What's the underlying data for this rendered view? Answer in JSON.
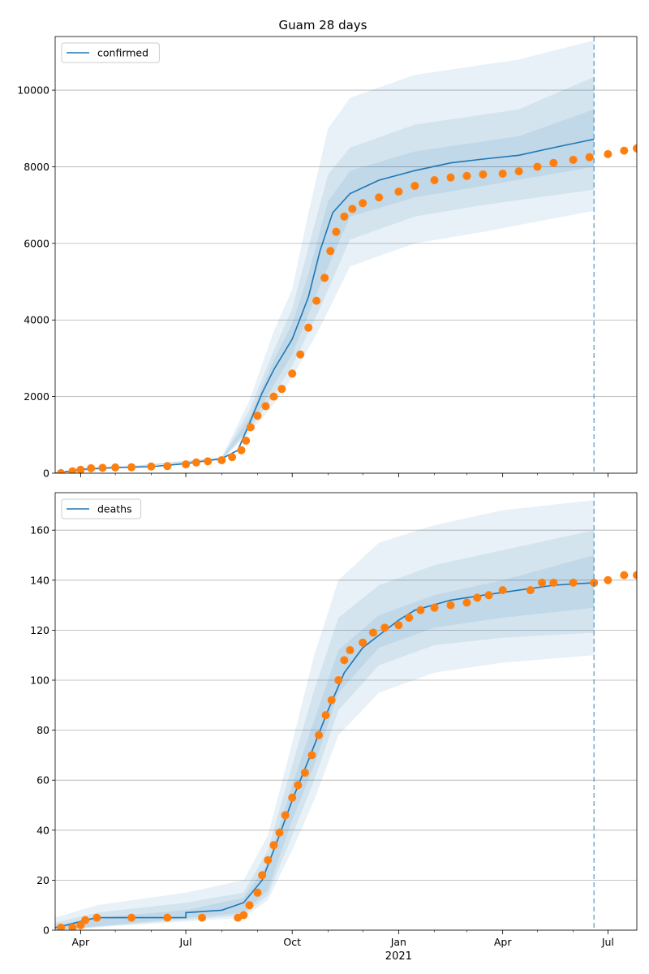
{
  "figure": {
    "title": "Guam 28 days"
  },
  "colors": {
    "line": "#1f77b4",
    "observed": "#ff7f0e",
    "band": "#1f77b4",
    "grid": "#b0b0b0",
    "forecast_line": "#1f77b4"
  },
  "x_axis": {
    "start": "2020-03-10",
    "end": "2021-07-26",
    "ticks": [
      {
        "date": "2020-04-01",
        "label": "Apr"
      },
      {
        "date": "2020-07-01",
        "label": "Jul"
      },
      {
        "date": "2020-10-01",
        "label": "Oct"
      },
      {
        "date": "2021-01-01",
        "label": "Jan"
      },
      {
        "date": "2021-04-01",
        "label": "Apr"
      },
      {
        "date": "2021-07-01",
        "label": "Jul"
      }
    ],
    "year_label": "2021",
    "year_label_date": "2021-01-01",
    "forecast_start": "2021-06-19"
  },
  "chart_data": [
    {
      "type": "line",
      "name": "confirmed",
      "legend": "confirmed",
      "legend_position": "top-left",
      "ylim": [
        0,
        11400
      ],
      "yticks": [
        0,
        2000,
        4000,
        6000,
        8000,
        10000
      ],
      "grid": true,
      "model_median": [
        [
          "2020-03-10",
          0
        ],
        [
          "2020-04-01",
          100
        ],
        [
          "2020-05-01",
          150
        ],
        [
          "2020-06-01",
          170
        ],
        [
          "2020-07-01",
          250
        ],
        [
          "2020-08-01",
          380
        ],
        [
          "2020-08-15",
          600
        ],
        [
          "2020-08-25",
          1300
        ],
        [
          "2020-09-05",
          2100
        ],
        [
          "2020-09-15",
          2700
        ],
        [
          "2020-10-01",
          3500
        ],
        [
          "2020-10-15",
          4600
        ],
        [
          "2020-10-25",
          5800
        ],
        [
          "2020-11-05",
          6800
        ],
        [
          "2020-11-20",
          7300
        ],
        [
          "2020-12-15",
          7650
        ],
        [
          "2021-01-15",
          7900
        ],
        [
          "2021-02-15",
          8100
        ],
        [
          "2021-03-15",
          8200
        ],
        [
          "2021-04-15",
          8300
        ],
        [
          "2021-05-15",
          8500
        ],
        [
          "2021-06-19",
          8720
        ]
      ],
      "bands": [
        {
          "lower": [
            [
              "2020-03-10",
              0
            ],
            [
              "2020-08-01",
              340
            ],
            [
              "2020-08-25",
              1050
            ],
            [
              "2020-09-15",
              1800
            ],
            [
              "2020-10-01",
              2500
            ],
            [
              "2020-10-25",
              3800
            ],
            [
              "2020-11-20",
              5400
            ],
            [
              "2021-01-15",
              6000
            ],
            [
              "2021-03-15",
              6300
            ],
            [
              "2021-06-19",
              6850
            ]
          ],
          "upper": [
            [
              "2020-03-10",
              0
            ],
            [
              "2020-08-01",
              420
            ],
            [
              "2020-08-25",
              1900
            ],
            [
              "2020-09-15",
              3700
            ],
            [
              "2020-10-01",
              4800
            ],
            [
              "2020-10-15",
              6800
            ],
            [
              "2020-11-01",
              9000
            ],
            [
              "2020-11-20",
              9800
            ],
            [
              "2021-01-15",
              10400
            ],
            [
              "2021-04-15",
              10800
            ],
            [
              "2021-06-19",
              11300
            ]
          ]
        },
        {
          "lower": [
            [
              "2020-03-10",
              0
            ],
            [
              "2020-08-01",
              350
            ],
            [
              "2020-08-25",
              1120
            ],
            [
              "2020-09-15",
              2050
            ],
            [
              "2020-10-01",
              2800
            ],
            [
              "2020-10-25",
              4300
            ],
            [
              "2020-11-20",
              6100
            ],
            [
              "2021-01-15",
              6700
            ],
            [
              "2021-03-15",
              7000
            ],
            [
              "2021-06-19",
              7400
            ]
          ],
          "upper": [
            [
              "2020-03-10",
              0
            ],
            [
              "2020-08-01",
              400
            ],
            [
              "2020-08-25",
              1650
            ],
            [
              "2020-09-15",
              3200
            ],
            [
              "2020-10-01",
              4300
            ],
            [
              "2020-10-15",
              5900
            ],
            [
              "2020-11-01",
              7800
            ],
            [
              "2020-11-20",
              8500
            ],
            [
              "2021-01-15",
              9100
            ],
            [
              "2021-04-15",
              9500
            ],
            [
              "2021-06-19",
              10350
            ]
          ]
        },
        {
          "lower": [
            [
              "2020-03-10",
              0
            ],
            [
              "2020-08-01",
              360
            ],
            [
              "2020-08-25",
              1200
            ],
            [
              "2020-09-15",
              2300
            ],
            [
              "2020-10-01",
              3100
            ],
            [
              "2020-10-25",
              4900
            ],
            [
              "2020-11-20",
              6700
            ],
            [
              "2021-01-15",
              7200
            ],
            [
              "2021-03-15",
              7500
            ],
            [
              "2021-06-19",
              8000
            ]
          ],
          "upper": [
            [
              "2020-03-10",
              0
            ],
            [
              "2020-08-01",
              390
            ],
            [
              "2020-08-25",
              1450
            ],
            [
              "2020-09-15",
              2950
            ],
            [
              "2020-10-01",
              3900
            ],
            [
              "2020-10-15",
              5200
            ],
            [
              "2020-11-01",
              7100
            ],
            [
              "2020-11-20",
              7900
            ],
            [
              "2021-01-15",
              8400
            ],
            [
              "2021-04-15",
              8800
            ],
            [
              "2021-06-19",
              9500
            ]
          ]
        }
      ],
      "observed": [
        [
          "2020-03-15",
          3
        ],
        [
          "2020-03-25",
          50
        ],
        [
          "2020-04-01",
          90
        ],
        [
          "2020-04-10",
          130
        ],
        [
          "2020-04-20",
          140
        ],
        [
          "2020-05-01",
          150
        ],
        [
          "2020-05-15",
          155
        ],
        [
          "2020-06-01",
          175
        ],
        [
          "2020-06-15",
          185
        ],
        [
          "2020-07-01",
          230
        ],
        [
          "2020-07-10",
          280
        ],
        [
          "2020-07-20",
          310
        ],
        [
          "2020-08-01",
          340
        ],
        [
          "2020-08-10",
          420
        ],
        [
          "2020-08-18",
          600
        ],
        [
          "2020-08-22",
          850
        ],
        [
          "2020-08-26",
          1200
        ],
        [
          "2020-09-01",
          1500
        ],
        [
          "2020-09-08",
          1750
        ],
        [
          "2020-09-15",
          2000
        ],
        [
          "2020-09-22",
          2200
        ],
        [
          "2020-10-01",
          2600
        ],
        [
          "2020-10-08",
          3100
        ],
        [
          "2020-10-15",
          3800
        ],
        [
          "2020-10-22",
          4500
        ],
        [
          "2020-10-29",
          5100
        ],
        [
          "2020-11-03",
          5800
        ],
        [
          "2020-11-08",
          6300
        ],
        [
          "2020-11-15",
          6700
        ],
        [
          "2020-11-22",
          6900
        ],
        [
          "2020-12-01",
          7050
        ],
        [
          "2020-12-15",
          7200
        ],
        [
          "2021-01-01",
          7350
        ],
        [
          "2021-01-15",
          7500
        ],
        [
          "2021-02-01",
          7650
        ],
        [
          "2021-02-15",
          7720
        ],
        [
          "2021-03-01",
          7760
        ],
        [
          "2021-03-15",
          7800
        ],
        [
          "2021-04-01",
          7820
        ],
        [
          "2021-04-15",
          7880
        ],
        [
          "2021-05-01",
          8000
        ],
        [
          "2021-05-15",
          8100
        ],
        [
          "2021-06-01",
          8180
        ],
        [
          "2021-06-15",
          8250
        ],
        [
          "2021-07-01",
          8330
        ],
        [
          "2021-07-15",
          8420
        ],
        [
          "2021-07-26",
          8480
        ]
      ]
    },
    {
      "type": "line",
      "name": "deaths",
      "legend": "deaths",
      "legend_position": "top-left",
      "ylim": [
        0,
        175
      ],
      "yticks": [
        0,
        20,
        40,
        60,
        80,
        100,
        120,
        140,
        160
      ],
      "grid": true,
      "model_median": [
        [
          "2020-03-10",
          1
        ],
        [
          "2020-03-20",
          2
        ],
        [
          "2020-04-05",
          4
        ],
        [
          "2020-04-15",
          5
        ],
        [
          "2020-07-01",
          5
        ],
        [
          "2020-07-01",
          7
        ],
        [
          "2020-08-01",
          8
        ],
        [
          "2020-08-20",
          11
        ],
        [
          "2020-09-05",
          20
        ],
        [
          "2020-09-20",
          38
        ],
        [
          "2020-10-01",
          52
        ],
        [
          "2020-10-15",
          68
        ],
        [
          "2020-11-01",
          88
        ],
        [
          "2020-11-15",
          103
        ],
        [
          "2020-12-01",
          113
        ],
        [
          "2020-12-15",
          118
        ],
        [
          "2021-01-01",
          124
        ],
        [
          "2021-01-15",
          128
        ],
        [
          "2021-02-15",
          132
        ],
        [
          "2021-03-15",
          134
        ],
        [
          "2021-04-15",
          136
        ],
        [
          "2021-05-15",
          138
        ],
        [
          "2021-06-19",
          139
        ]
      ],
      "bands": [
        {
          "lower": [
            [
              "2020-03-10",
              0
            ],
            [
              "2020-08-20",
              5
            ],
            [
              "2020-09-10",
              12
            ],
            [
              "2020-10-01",
              32
            ],
            [
              "2020-10-20",
              52
            ],
            [
              "2020-11-10",
              78
            ],
            [
              "2020-12-15",
              95
            ],
            [
              "2021-02-01",
              103
            ],
            [
              "2021-04-01",
              107
            ],
            [
              "2021-06-19",
              110
            ]
          ],
          "upper": [
            [
              "2020-03-10",
              5
            ],
            [
              "2020-04-15",
              10
            ],
            [
              "2020-07-01",
              15
            ],
            [
              "2020-08-20",
              20
            ],
            [
              "2020-09-10",
              38
            ],
            [
              "2020-10-01",
              75
            ],
            [
              "2020-10-20",
              110
            ],
            [
              "2020-11-10",
              140
            ],
            [
              "2020-12-15",
              155
            ],
            [
              "2021-02-01",
              162
            ],
            [
              "2021-04-01",
              168
            ],
            [
              "2021-06-19",
              172
            ]
          ]
        },
        {
          "lower": [
            [
              "2020-03-10",
              0
            ],
            [
              "2020-08-20",
              6
            ],
            [
              "2020-09-10",
              14
            ],
            [
              "2020-10-01",
              38
            ],
            [
              "2020-10-20",
              60
            ],
            [
              "2020-11-10",
              88
            ],
            [
              "2020-12-15",
              106
            ],
            [
              "2021-02-01",
              114
            ],
            [
              "2021-04-01",
              117
            ],
            [
              "2021-06-19",
              119
            ]
          ],
          "upper": [
            [
              "2020-03-10",
              3
            ],
            [
              "2020-04-15",
              7
            ],
            [
              "2020-07-01",
              11
            ],
            [
              "2020-08-20",
              15
            ],
            [
              "2020-09-10",
              32
            ],
            [
              "2020-10-01",
              66
            ],
            [
              "2020-10-20",
              96
            ],
            [
              "2020-11-10",
              125
            ],
            [
              "2020-12-15",
              138
            ],
            [
              "2021-02-01",
              146
            ],
            [
              "2021-04-01",
              152
            ],
            [
              "2021-06-19",
              160
            ]
          ]
        },
        {
          "lower": [
            [
              "2020-03-10",
              0
            ],
            [
              "2020-08-20",
              7
            ],
            [
              "2020-09-10",
              16
            ],
            [
              "2020-10-01",
              44
            ],
            [
              "2020-10-20",
              66
            ],
            [
              "2020-11-10",
              95
            ],
            [
              "2020-12-15",
              113
            ],
            [
              "2021-02-01",
              121
            ],
            [
              "2021-04-01",
              125
            ],
            [
              "2021-06-19",
              129
            ]
          ],
          "upper": [
            [
              "2020-03-10",
              2
            ],
            [
              "2020-04-15",
              5
            ],
            [
              "2020-07-01",
              8
            ],
            [
              "2020-08-20",
              13
            ],
            [
              "2020-09-10",
              27
            ],
            [
              "2020-10-01",
              58
            ],
            [
              "2020-10-20",
              84
            ],
            [
              "2020-11-10",
              112
            ],
            [
              "2020-12-15",
              126
            ],
            [
              "2021-02-01",
              134
            ],
            [
              "2021-04-01",
              140
            ],
            [
              "2021-06-19",
              150
            ]
          ]
        }
      ],
      "observed": [
        [
          "2020-03-15",
          1
        ],
        [
          "2020-03-25",
          1
        ],
        [
          "2020-04-01",
          2
        ],
        [
          "2020-04-05",
          4
        ],
        [
          "2020-04-15",
          5
        ],
        [
          "2020-05-15",
          5
        ],
        [
          "2020-06-15",
          5
        ],
        [
          "2020-07-15",
          5
        ],
        [
          "2020-08-15",
          5
        ],
        [
          "2020-08-20",
          6
        ],
        [
          "2020-08-25",
          10
        ],
        [
          "2020-09-01",
          15
        ],
        [
          "2020-09-05",
          22
        ],
        [
          "2020-09-10",
          28
        ],
        [
          "2020-09-15",
          34
        ],
        [
          "2020-09-20",
          39
        ],
        [
          "2020-09-25",
          46
        ],
        [
          "2020-10-01",
          53
        ],
        [
          "2020-10-06",
          58
        ],
        [
          "2020-10-12",
          63
        ],
        [
          "2020-10-18",
          70
        ],
        [
          "2020-10-24",
          78
        ],
        [
          "2020-10-30",
          86
        ],
        [
          "2020-11-04",
          92
        ],
        [
          "2020-11-10",
          100
        ],
        [
          "2020-11-15",
          108
        ],
        [
          "2020-11-20",
          112
        ],
        [
          "2020-12-01",
          115
        ],
        [
          "2020-12-10",
          119
        ],
        [
          "2020-12-20",
          121
        ],
        [
          "2021-01-01",
          122
        ],
        [
          "2021-01-10",
          125
        ],
        [
          "2021-01-20",
          128
        ],
        [
          "2021-02-01",
          129
        ],
        [
          "2021-02-15",
          130
        ],
        [
          "2021-03-01",
          131
        ],
        [
          "2021-03-10",
          133
        ],
        [
          "2021-03-20",
          134
        ],
        [
          "2021-04-01",
          136
        ],
        [
          "2021-04-25",
          136
        ],
        [
          "2021-05-05",
          139
        ],
        [
          "2021-05-15",
          139
        ],
        [
          "2021-06-01",
          139
        ],
        [
          "2021-06-19",
          139
        ],
        [
          "2021-07-01",
          140
        ],
        [
          "2021-07-15",
          142
        ],
        [
          "2021-07-26",
          142
        ]
      ]
    }
  ]
}
